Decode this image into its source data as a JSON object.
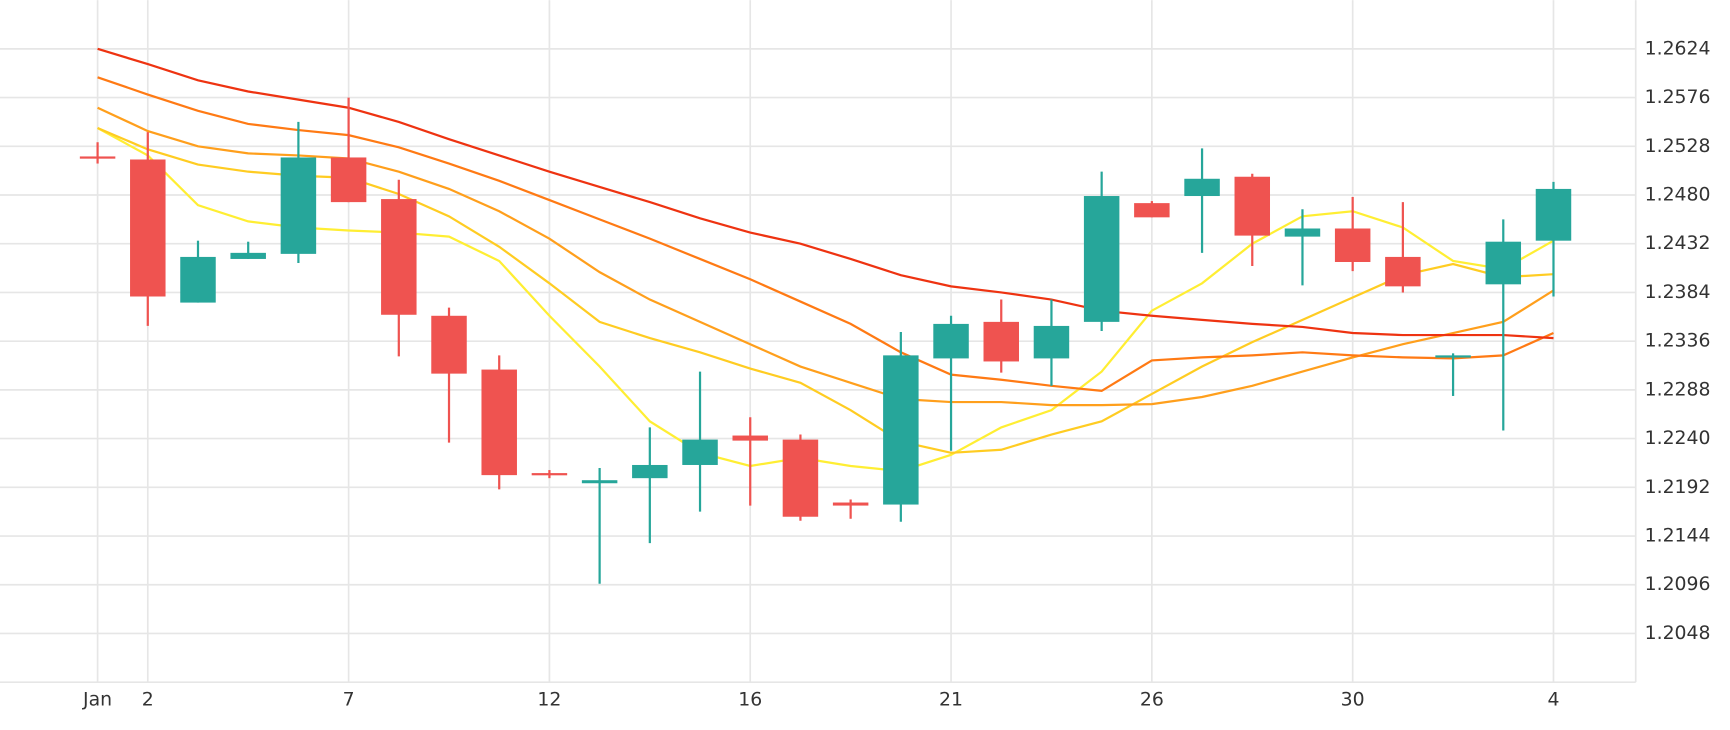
{
  "chart_data": {
    "type": "candlestick",
    "categories": [
      "Jan",
      "2",
      null,
      null,
      null,
      "7",
      null,
      null,
      null,
      "12",
      null,
      null,
      null,
      "16",
      null,
      null,
      null,
      "21",
      null,
      null,
      null,
      "26",
      null,
      null,
      null,
      "30",
      null,
      null,
      null,
      "4"
    ],
    "open": [
      1.2518,
      1.2515,
      1.2374,
      1.2417,
      1.2422,
      1.2517,
      1.2476,
      1.2361,
      1.2308,
      1.2206,
      1.2196,
      1.2201,
      1.2214,
      1.2243,
      1.2239,
      1.2177,
      1.2175,
      1.2319,
      1.2355,
      1.2319,
      1.2355,
      1.2472,
      1.2479,
      1.2498,
      1.2439,
      1.2447,
      1.2419,
      1.232,
      1.2392,
      1.2435
    ],
    "high": [
      1.2532,
      1.2542,
      1.2435,
      1.2434,
      1.2552,
      1.2576,
      1.2495,
      1.2369,
      1.2322,
      1.2209,
      1.2211,
      1.2251,
      1.2306,
      1.2261,
      1.2244,
      1.218,
      1.2345,
      1.2361,
      1.2377,
      1.2377,
      1.2503,
      1.2474,
      1.2526,
      1.2501,
      1.2466,
      1.2478,
      1.2473,
      1.2324,
      1.2456,
      1.2493
    ],
    "low": [
      1.2511,
      1.2351,
      1.2374,
      1.2417,
      1.2413,
      1.2473,
      1.2321,
      1.2236,
      1.219,
      1.2201,
      1.2097,
      1.2137,
      1.2168,
      1.2174,
      1.2159,
      1.2161,
      1.2158,
      1.2228,
      1.2305,
      1.2292,
      1.2346,
      1.2458,
      1.2423,
      1.241,
      1.2391,
      1.2405,
      1.2384,
      1.2282,
      1.2248,
      1.238
    ],
    "close": [
      1.2517,
      1.238,
      1.2419,
      1.2423,
      1.2517,
      1.2473,
      1.2362,
      1.2304,
      1.2204,
      1.2204,
      1.2199,
      1.2214,
      1.2239,
      1.2238,
      1.2163,
      1.2174,
      1.2322,
      1.2353,
      1.2316,
      1.2351,
      1.2479,
      1.2458,
      1.2496,
      1.244,
      1.2447,
      1.2414,
      1.239,
      1.2322,
      1.2434,
      1.2486
    ],
    "up_color": "#26a69a",
    "down_color": "#ef5350",
    "series": [
      {
        "color": "#ffee33",
        "values": [
          1.2546,
          1.2519,
          1.247,
          1.2454,
          1.2448,
          1.2445,
          1.2443,
          1.2439,
          1.2415,
          1.2361,
          1.2311,
          1.2257,
          1.2226,
          1.2213,
          1.2221,
          1.2213,
          1.2208,
          1.2224,
          1.2251,
          1.2268,
          1.2306,
          1.2366,
          1.2393,
          1.2432,
          1.2459,
          1.2464,
          1.2448,
          1.2415,
          1.2407,
          1.2435
        ]
      },
      {
        "color": "#ffcc22",
        "values": [
          1.2546,
          1.2525,
          1.251,
          1.2503,
          1.2499,
          1.2497,
          1.2481,
          1.2459,
          1.2429,
          1.2393,
          1.2355,
          1.2339,
          1.2325,
          1.2309,
          1.2295,
          1.2268,
          1.2237,
          1.2226,
          1.2229,
          1.2244,
          1.2257,
          1.2284,
          1.2311,
          1.2335,
          1.2357,
          1.2379,
          1.2401,
          1.2412,
          1.2399,
          1.2402
        ]
      },
      {
        "color": "#ff9f1c",
        "values": [
          1.2566,
          1.2543,
          1.2528,
          1.2521,
          1.2519,
          1.2516,
          1.2503,
          1.2486,
          1.2464,
          1.2437,
          1.2404,
          1.2377,
          1.2355,
          1.2333,
          1.2311,
          1.2295,
          1.2279,
          1.2276,
          1.2276,
          1.2273,
          1.2273,
          1.2274,
          1.2281,
          1.2292,
          1.2306,
          1.232,
          1.2333,
          1.2344,
          1.2355,
          1.2386
        ]
      },
      {
        "color": "#ff7a14",
        "values": [
          1.2596,
          1.2579,
          1.2563,
          1.255,
          1.2544,
          1.2539,
          1.2527,
          1.2511,
          1.2494,
          1.2475,
          1.2456,
          1.2437,
          1.2417,
          1.2397,
          1.2375,
          1.2353,
          1.2325,
          1.2303,
          1.2298,
          1.2292,
          1.2287,
          1.2317,
          1.232,
          1.2322,
          1.2325,
          1.2322,
          1.232,
          1.2319,
          1.2322,
          1.2344
        ]
      },
      {
        "color": "#ee3311",
        "values": [
          1.2624,
          1.2609,
          1.2593,
          1.2582,
          1.2574,
          1.2566,
          1.2552,
          1.2535,
          1.2519,
          1.2503,
          1.2488,
          1.2473,
          1.2457,
          1.2443,
          1.2432,
          1.2417,
          1.2401,
          1.239,
          1.2384,
          1.2377,
          1.2366,
          1.2361,
          1.2357,
          1.2353,
          1.235,
          1.2344,
          1.2342,
          1.2342,
          1.2342,
          1.2339
        ]
      }
    ],
    "ylim": [
      1.2,
      1.2672
    ],
    "yticks": [
      1.2048,
      1.2096,
      1.2144,
      1.2192,
      {
        "value": 1.224,
        "label": "1.2240"
      },
      1.2288,
      1.2336,
      1.2384,
      1.2432,
      {
        "value": 1.248,
        "label": "1.2480"
      },
      1.2528,
      1.2576,
      1.2624
    ],
    "grid": true
  }
}
